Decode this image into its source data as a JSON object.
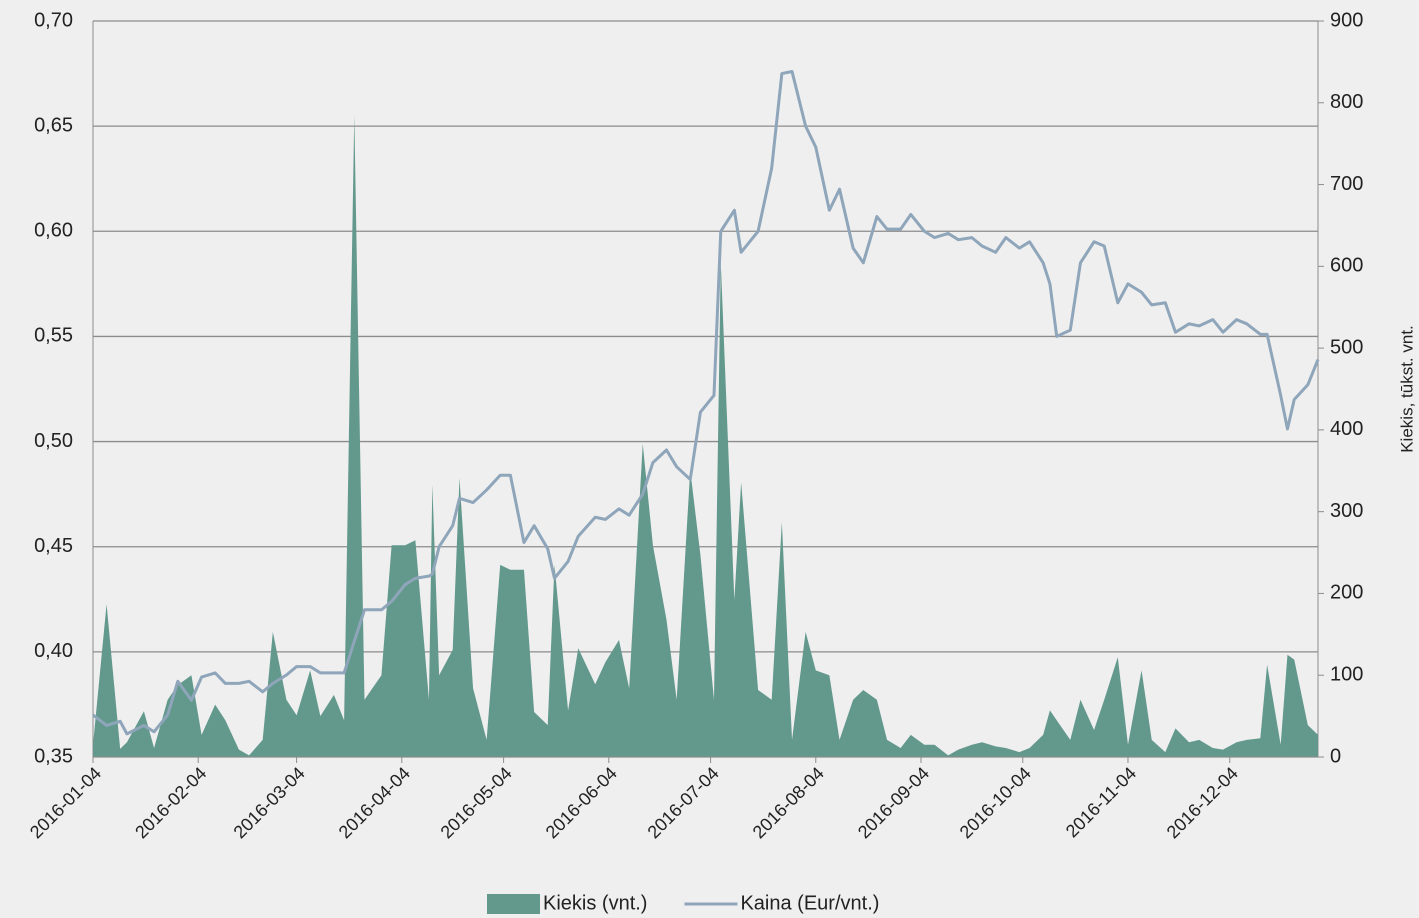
{
  "chart_data": {
    "type": "area_line",
    "x": [
      "2016-01-04",
      "2016-01-08",
      "2016-01-12",
      "2016-01-14",
      "2016-01-19",
      "2016-01-22",
      "2016-01-26",
      "2016-01-29",
      "2016-02-02",
      "2016-02-05",
      "2016-02-09",
      "2016-02-12",
      "2016-02-16",
      "2016-02-19",
      "2016-02-23",
      "2016-02-26",
      "2016-03-01",
      "2016-03-04",
      "2016-03-08",
      "2016-03-11",
      "2016-03-15",
      "2016-03-18",
      "2016-03-21",
      "2016-03-24",
      "2016-03-29",
      "2016-04-01",
      "2016-04-05",
      "2016-04-08",
      "2016-04-12",
      "2016-04-13",
      "2016-04-15",
      "2016-04-19",
      "2016-04-21",
      "2016-04-25",
      "2016-04-29",
      "2016-05-03",
      "2016-05-06",
      "2016-05-10",
      "2016-05-13",
      "2016-05-17",
      "2016-05-19",
      "2016-05-23",
      "2016-05-26",
      "2016-05-31",
      "2016-06-03",
      "2016-06-07",
      "2016-06-10",
      "2016-06-14",
      "2016-06-17",
      "2016-06-21",
      "2016-06-24",
      "2016-06-28",
      "2016-07-01",
      "2016-07-05",
      "2016-07-07",
      "2016-07-11",
      "2016-07-13",
      "2016-07-18",
      "2016-07-22",
      "2016-07-25",
      "2016-07-28",
      "2016-08-01",
      "2016-08-04",
      "2016-08-08",
      "2016-08-11",
      "2016-08-15",
      "2016-08-18",
      "2016-08-22",
      "2016-08-25",
      "2016-08-29",
      "2016-09-01",
      "2016-09-05",
      "2016-09-08",
      "2016-09-12",
      "2016-09-15",
      "2016-09-19",
      "2016-09-22",
      "2016-09-26",
      "2016-09-29",
      "2016-10-03",
      "2016-10-06",
      "2016-10-10",
      "2016-10-12",
      "2016-10-14",
      "2016-10-18",
      "2016-10-21",
      "2016-10-25",
      "2016-10-28",
      "2016-11-01",
      "2016-11-04",
      "2016-11-08",
      "2016-11-11",
      "2016-11-15",
      "2016-11-18",
      "2016-11-22",
      "2016-11-25",
      "2016-11-29",
      "2016-12-02",
      "2016-12-06",
      "2016-12-09",
      "2016-12-13",
      "2016-12-15",
      "2016-12-19",
      "2016-12-21",
      "2016-12-23",
      "2016-12-27",
      "2016-12-30"
    ],
    "xlim": [
      "2016-01-04",
      "2016-12-30"
    ],
    "xticks": [
      "2016-01-04",
      "2016-02-04",
      "2016-03-04",
      "2016-04-04",
      "2016-05-04",
      "2016-06-04",
      "2016-07-04",
      "2016-08-04",
      "2016-09-04",
      "2016-10-04",
      "2016-11-04",
      "2016-12-04"
    ],
    "series": [
      {
        "name": "Kiekis (vnt.)",
        "type": "area",
        "axis": "y2",
        "color": "#63998d",
        "values": [
          15,
          187,
          10,
          18,
          56,
          11,
          70,
          88,
          100,
          27,
          64,
          45,
          9,
          2,
          21,
          153,
          70,
          51,
          106,
          50,
          76,
          45,
          785,
          70,
          100,
          259,
          259,
          265,
          70,
          333,
          100,
          131,
          341,
          84,
          21,
          235,
          229,
          229,
          55,
          39,
          235,
          57,
          133,
          89,
          116,
          143,
          84,
          383,
          259,
          168,
          70,
          351,
          247,
          70,
          605,
          192,
          336,
          82,
          70,
          287,
          21,
          153,
          106,
          100,
          21,
          70,
          82,
          70,
          21,
          11,
          27,
          15,
          15,
          2,
          9,
          15,
          18,
          13,
          11,
          6,
          11,
          27,
          57,
          45,
          21,
          70,
          33,
          70,
          122,
          15,
          106,
          21,
          6,
          35,
          18,
          21,
          11,
          9,
          18,
          21,
          23,
          113,
          15,
          125,
          119,
          39,
          27
        ]
      },
      {
        "name": "Kaina (Eur/vnt.)",
        "type": "line",
        "axis": "y",
        "color": "#8ea5ba",
        "values": [
          0.37,
          0.365,
          0.367,
          0.361,
          0.365,
          0.362,
          0.37,
          0.386,
          0.377,
          0.388,
          0.39,
          0.385,
          0.385,
          0.386,
          0.381,
          0.385,
          0.389,
          0.393,
          0.393,
          0.39,
          0.39,
          0.39,
          0.405,
          0.42,
          0.42,
          0.424,
          0.432,
          0.435,
          0.436,
          0.437,
          0.45,
          0.46,
          0.473,
          0.471,
          0.477,
          0.484,
          0.484,
          0.452,
          0.46,
          0.449,
          0.435,
          0.443,
          0.455,
          0.464,
          0.463,
          0.468,
          0.465,
          0.475,
          0.49,
          0.496,
          0.488,
          0.482,
          0.514,
          0.522,
          0.6,
          0.61,
          0.59,
          0.6,
          0.63,
          0.675,
          0.676,
          0.65,
          0.64,
          0.61,
          0.62,
          0.592,
          0.585,
          0.607,
          0.601,
          0.601,
          0.608,
          0.6,
          0.597,
          0.599,
          0.596,
          0.597,
          0.593,
          0.59,
          0.597,
          0.592,
          0.595,
          0.585,
          0.575,
          0.55,
          0.553,
          0.585,
          0.595,
          0.593,
          0.566,
          0.575,
          0.571,
          0.565,
          0.566,
          0.552,
          0.556,
          0.555,
          0.558,
          0.552,
          0.558,
          0.556,
          0.551,
          0.551,
          0.522,
          0.506,
          0.52,
          0.527,
          0.539
        ]
      }
    ],
    "ylim": [
      0.35,
      0.7
    ],
    "yticks": [
      {
        "value": 0.35,
        "label": "0,35"
      },
      {
        "value": 0.4,
        "label": "0,40"
      },
      {
        "value": 0.45,
        "label": "0,45"
      },
      {
        "value": 0.5,
        "label": "0,50"
      },
      {
        "value": 0.55,
        "label": "0,55"
      },
      {
        "value": 0.6,
        "label": "0,60"
      },
      {
        "value": 0.65,
        "label": "0,65"
      },
      {
        "value": 0.7,
        "label": "0,70"
      }
    ],
    "y2lim": [
      0,
      900
    ],
    "y2ticks": [
      0,
      100,
      200,
      300,
      400,
      500,
      600,
      700,
      800,
      900
    ],
    "y2label": "Kiekis, tūkst. vnt.",
    "grid": true,
    "legend": "bottom"
  }
}
